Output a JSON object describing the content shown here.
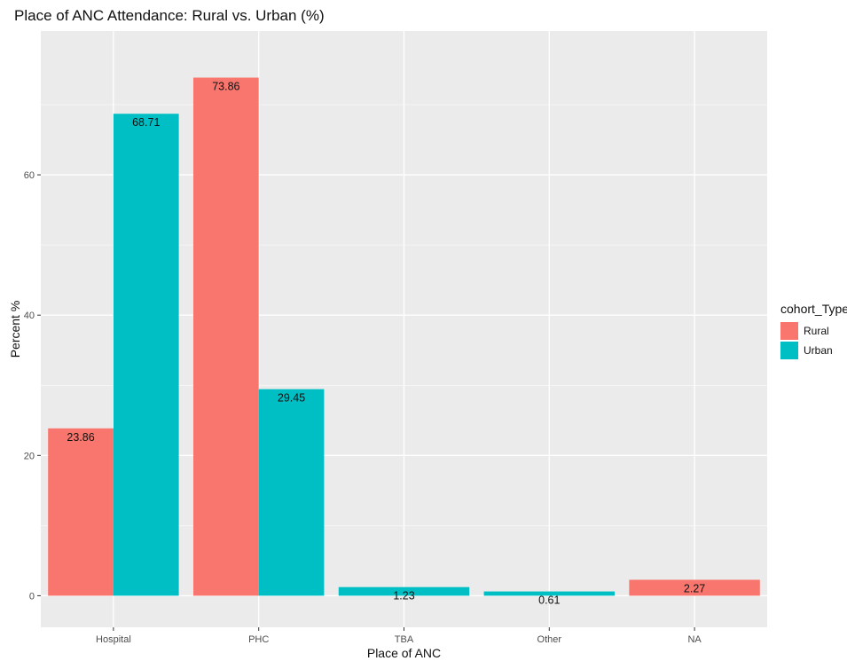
{
  "chart_data": {
    "type": "bar",
    "title": "Place of ANC Attendance: Rural vs. Urban (%)",
    "xlabel": "Place of ANC",
    "ylabel": "Percent %",
    "categories": [
      "Hospital",
      "PHC",
      "TBA",
      "Other",
      "NA"
    ],
    "series": [
      {
        "name": "Rural",
        "color": "#F8766D",
        "values": [
          23.86,
          73.86,
          null,
          null,
          2.27
        ]
      },
      {
        "name": "Urban",
        "color": "#00BFC4",
        "values": [
          68.71,
          29.45,
          1.23,
          0.61,
          null
        ]
      }
    ],
    "data_labels": [
      [
        "23.86",
        "68.71"
      ],
      [
        "73.86",
        "29.45"
      ],
      [
        null,
        "1.23"
      ],
      [
        null,
        "0.61"
      ],
      [
        "2.27",
        null
      ]
    ],
    "y_ticks": [
      0,
      20,
      40,
      60
    ],
    "ylim": [
      -4.5,
      80.5
    ],
    "grid": true,
    "legend": {
      "title": "cohort_Type",
      "placement": "right"
    },
    "panel_color": "#EBEBEB"
  }
}
